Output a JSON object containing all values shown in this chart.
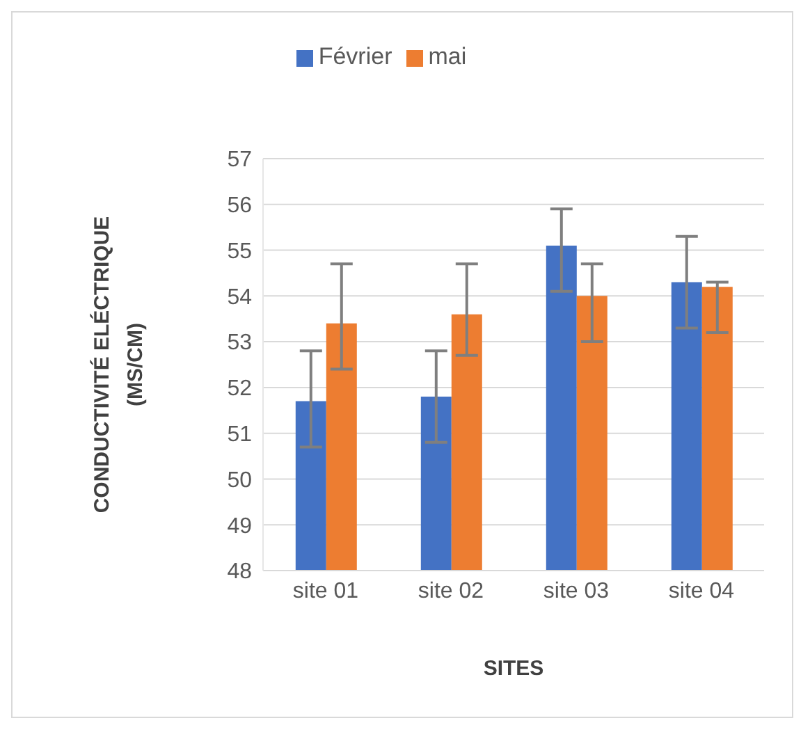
{
  "chart_data": {
    "type": "bar",
    "xlabel": "SITES",
    "ylabel": "CONDUCTIVITÉ ELÉCTRIQUE (MS/CM)",
    "categories": [
      "site 01",
      "site 02",
      "site 03",
      "site 04"
    ],
    "series": [
      {
        "name": "Février",
        "color": "#4472c4",
        "values": [
          51.7,
          51.8,
          55.1,
          54.3
        ],
        "errors": [
          [
            50.7,
            52.8
          ],
          [
            50.8,
            52.8
          ],
          [
            54.1,
            55.9
          ],
          [
            53.3,
            55.3
          ]
        ]
      },
      {
        "name": "mai",
        "color": "#ed7d31",
        "values": [
          53.4,
          53.6,
          54.0,
          54.2
        ],
        "errors": [
          [
            52.4,
            54.7
          ],
          [
            52.7,
            54.7
          ],
          [
            53.0,
            54.7
          ],
          [
            53.2,
            54.3
          ]
        ]
      }
    ],
    "ylim": [
      48,
      57
    ],
    "yticks": [
      48,
      49,
      50,
      51,
      52,
      53,
      54,
      55,
      56,
      57
    ],
    "grid": "y",
    "legend": "top"
  }
}
